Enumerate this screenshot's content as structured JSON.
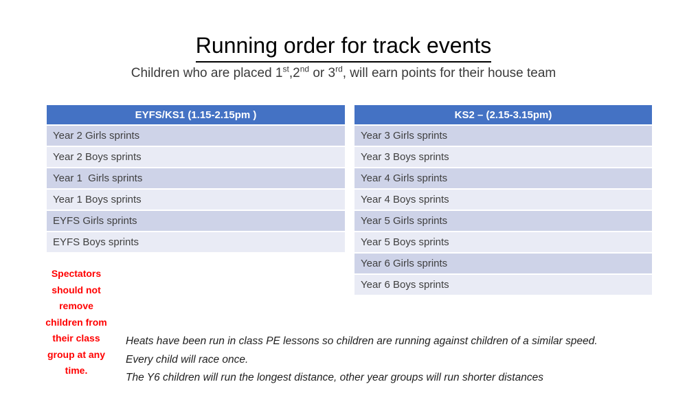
{
  "page": {
    "title": "Running order for track events",
    "subtitle": {
      "prefix": "Children who are placed 1",
      "sup1": "st",
      "mid1": ",2",
      "sup2": "nd",
      "mid2": " or 3",
      "sup3": "rd",
      "suffix": ", will earn points for their house team"
    }
  },
  "tables": [
    {
      "header": "EYFS/KS1 (1.15-2.15pm )",
      "rows": [
        "Year 2 Girls sprints",
        "Year 2 Boys sprints",
        "Year 1  Girls sprints",
        "Year 1 Boys sprints",
        "EYFS Girls sprints",
        "EYFS Boys sprints"
      ]
    },
    {
      "header": "KS2 – (2.15-3.15pm)",
      "rows": [
        "Year 3 Girls sprints",
        "Year 3 Boys sprints",
        "Year 4 Girls sprints",
        "Year 4 Boys sprints",
        "Year 5 Girls sprints",
        "Year 5 Boys sprints",
        "Year 6 Girls sprints",
        "Year 6 Boys sprints"
      ]
    }
  ],
  "warning": {
    "lines": [
      "Spectators",
      "should not",
      "remove",
      "children from",
      "their class",
      "group at any",
      "time."
    ]
  },
  "notes": {
    "lines": [
      "Heats have been run in class PE lessons so children are running against children of a similar speed.",
      "Every child will race once.",
      "The Y6 children will run the longest distance, other year groups will run shorter distances"
    ]
  },
  "colors": {
    "header_bg": "#4472C4",
    "band_dark": "#CED3E8",
    "band_light": "#E9EBF5",
    "warning_color": "#FF0000",
    "header_text": "#FFFFFF",
    "body_text": "#3F3F3F"
  }
}
